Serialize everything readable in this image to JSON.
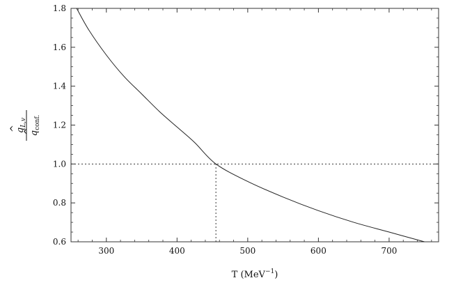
{
  "chart_data": {
    "type": "line",
    "title": "",
    "xlabel": "T (MeV",
    "xlabel_sup": "−1",
    "xlabel_close": ")",
    "ylabel_numerator_base": "q",
    "ylabel_numerator_sub": "L,v",
    "ylabel_denominator_base": "q",
    "ylabel_denominator_sub": "conf.",
    "xlim": [
      250,
      770
    ],
    "ylim": [
      0.6,
      1.8
    ],
    "x_ticks": [
      300,
      400,
      500,
      600,
      700
    ],
    "x_tick_labels": [
      "300",
      "400",
      "500",
      "600",
      "700"
    ],
    "y_ticks": [
      0.6,
      0.8,
      1.0,
      1.2,
      1.4,
      1.6,
      1.8
    ],
    "y_tick_labels": [
      "0.6",
      "0.8",
      "1.0",
      "1.2",
      "1.4",
      "1.6",
      "1.8"
    ],
    "grid": false,
    "series": [
      {
        "style": "solid",
        "color": "#222222",
        "x": [
          258,
          275,
          300,
          325,
          350,
          375,
          400,
          425,
          455,
          500,
          550,
          600,
          650,
          700,
          750
        ],
        "y": [
          1.8,
          1.69,
          1.56,
          1.45,
          1.36,
          1.27,
          1.19,
          1.11,
          1.0,
          0.91,
          0.83,
          0.76,
          0.7,
          0.65,
          0.6
        ]
      }
    ],
    "reference_lines": [
      {
        "orientation": "horizontal",
        "y": 1.0,
        "x_from": 250,
        "x_to": 770,
        "style": "dotted"
      },
      {
        "orientation": "vertical",
        "x": 455,
        "y_from": 0.6,
        "y_to": 1.0,
        "style": "dotted"
      }
    ]
  }
}
